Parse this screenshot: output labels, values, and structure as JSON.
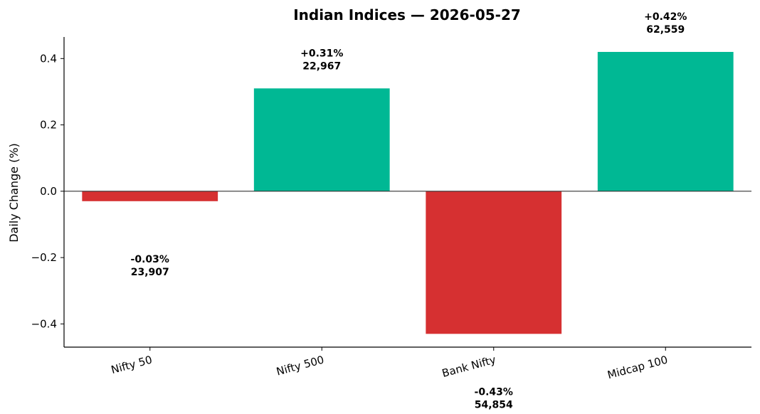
{
  "colors": {
    "positive": "#00b894",
    "negative": "#d63031",
    "axis": "#000000",
    "zero_line": "#333333"
  },
  "chart_data": {
    "type": "bar",
    "title": "Indian Indices — 2026-05-27",
    "xlabel": "",
    "ylabel": "Daily Change (%)",
    "categories": [
      "Nifty 50",
      "Nifty 500",
      "Bank Nifty",
      "Midcap 100"
    ],
    "values": [
      -0.03,
      0.31,
      -0.43,
      0.42
    ],
    "change_labels": [
      "-0.03%",
      "+0.31%",
      "-0.43%",
      "+0.42%"
    ],
    "level_labels": [
      "23,907",
      "22,967",
      "54,854",
      "62,559"
    ],
    "ylim": [
      -0.47,
      0.465
    ],
    "yticks": [
      -0.4,
      -0.2,
      0.0,
      0.2,
      0.4
    ],
    "ytick_labels": [
      "−0.4",
      "−0.2",
      "0.0",
      "0.2",
      "0.4"
    ],
    "grid": false,
    "legend": "none"
  }
}
